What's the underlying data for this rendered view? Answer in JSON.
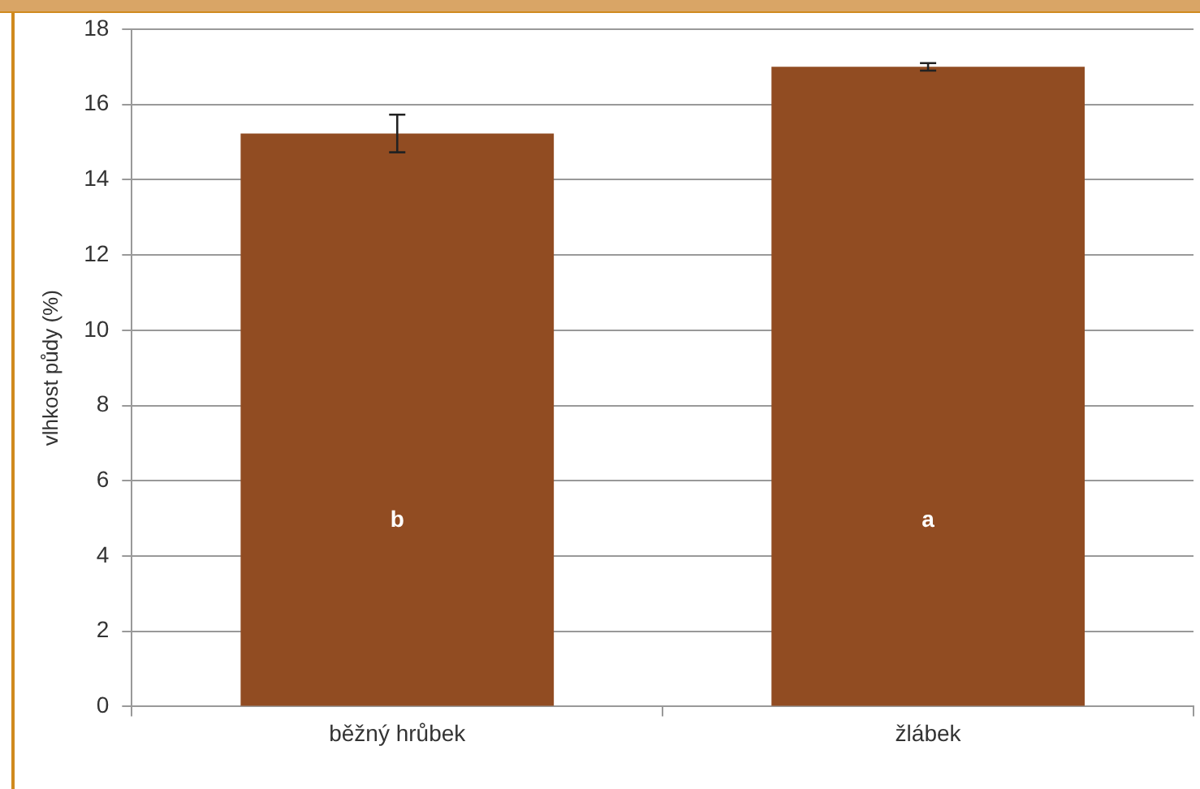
{
  "chart_data": {
    "type": "bar",
    "ylabel": "vlhkost půdy (%)",
    "categories": [
      "běžný hrůbek",
      "žlábek"
    ],
    "values": [
      15.23,
      17.0
    ],
    "errors": [
      0.5,
      0.1
    ],
    "color": "#914c22",
    "ylim": [
      0,
      18
    ],
    "yticks": [
      0,
      2,
      4,
      6,
      8,
      10,
      12,
      14,
      16,
      18
    ],
    "grid": "y",
    "legend": false,
    "annotations": [
      "b",
      "a"
    ]
  }
}
